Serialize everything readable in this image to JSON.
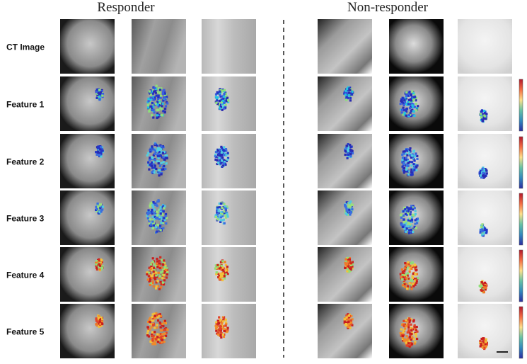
{
  "header": {
    "left": "Responder",
    "right": "Non-responder"
  },
  "rows": [
    "CT Image",
    "Feature 1",
    "Feature 2",
    "Feature 3",
    "Feature 4",
    "Feature 5"
  ]
}
